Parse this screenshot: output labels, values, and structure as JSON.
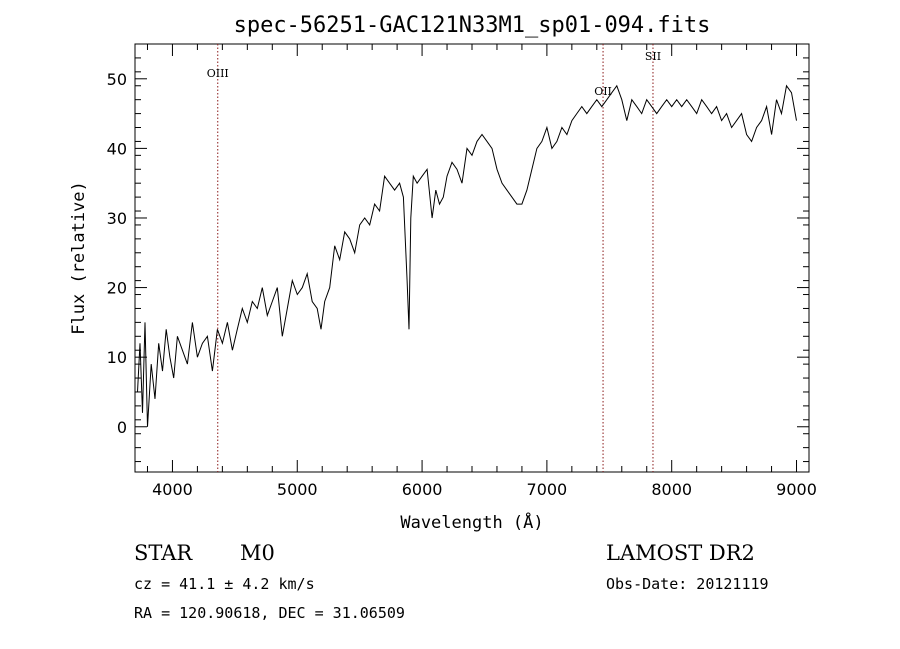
{
  "chart_data": {
    "type": "line",
    "title": "spec-56251-GAC121N33M1_sp01-094.fits",
    "xlabel": "Wavelength (Å)",
    "ylabel": "Flux (relative)",
    "xlim": [
      3700,
      9100
    ],
    "ylim": [
      -6.5,
      55
    ],
    "x_ticks": [
      4000,
      5000,
      6000,
      7000,
      8000,
      9000
    ],
    "y_ticks": [
      0,
      10,
      20,
      30,
      40,
      50
    ],
    "lines": [
      {
        "label": "OIII",
        "x": 4363
      },
      {
        "label": "OII",
        "x": 7450
      },
      {
        "label": "SII",
        "x": 7850
      }
    ],
    "line_color": "#8b1a1a",
    "series": [
      {
        "x": [
          3720,
          3740,
          3760,
          3780,
          3800,
          3830,
          3860,
          3890,
          3920,
          3950,
          3980,
          4010,
          4040,
          4080,
          4120,
          4160,
          4200,
          4240,
          4280,
          4320,
          4360,
          4400,
          4440,
          4480,
          4520,
          4560,
          4600,
          4640,
          4680,
          4720,
          4760,
          4800,
          4840,
          4880,
          4920,
          4960,
          5000,
          5040,
          5080,
          5120,
          5160,
          5190,
          5220,
          5260,
          5300,
          5340,
          5380,
          5420,
          5460,
          5500,
          5540,
          5580,
          5620,
          5660,
          5700,
          5740,
          5780,
          5820,
          5850,
          5880,
          5895,
          5910,
          5930,
          5960,
          6000,
          6040,
          6080,
          6110,
          6140,
          6170,
          6200,
          6240,
          6280,
          6320,
          6360,
          6400,
          6440,
          6480,
          6520,
          6560,
          6600,
          6640,
          6680,
          6720,
          6760,
          6800,
          6840,
          6880,
          6920,
          6960,
          7000,
          7040,
          7080,
          7120,
          7160,
          7200,
          7240,
          7280,
          7320,
          7360,
          7400,
          7440,
          7480,
          7520,
          7560,
          7600,
          7640,
          7680,
          7720,
          7760,
          7800,
          7840,
          7880,
          7920,
          7960,
          8000,
          8040,
          8080,
          8120,
          8160,
          8200,
          8240,
          8280,
          8320,
          8360,
          8400,
          8440,
          8480,
          8520,
          8560,
          8600,
          8640,
          8680,
          8720,
          8760,
          8800,
          8840,
          8880,
          8920,
          8960,
          9000
        ],
        "y": [
          5,
          12,
          2,
          15,
          0,
          9,
          4,
          12,
          8,
          14,
          10,
          7,
          13,
          11,
          9,
          15,
          10,
          12,
          13,
          8,
          14,
          12,
          15,
          11,
          14,
          17,
          15,
          18,
          17,
          20,
          16,
          18,
          20,
          13,
          17,
          21,
          19,
          20,
          22,
          18,
          17,
          14,
          18,
          20,
          26,
          24,
          28,
          27,
          25,
          29,
          30,
          29,
          32,
          31,
          36,
          35,
          34,
          35,
          33,
          21,
          14,
          30,
          36,
          35,
          36,
          37,
          30,
          34,
          32,
          33,
          36,
          38,
          37,
          35,
          40,
          39,
          41,
          42,
          41,
          40,
          37,
          35,
          34,
          33,
          32,
          32,
          34,
          37,
          40,
          41,
          43,
          40,
          41,
          43,
          42,
          44,
          45,
          46,
          45,
          46,
          47,
          46,
          47,
          48,
          49,
          47,
          44,
          47,
          46,
          45,
          47,
          46,
          45,
          46,
          47,
          46,
          47,
          46,
          47,
          46,
          45,
          47,
          46,
          45,
          46,
          44,
          45,
          43,
          44,
          45,
          42,
          41,
          43,
          44,
          46,
          42,
          47,
          45,
          49,
          48,
          44
        ]
      }
    ],
    "grid": false
  },
  "info": {
    "object_type": "STAR",
    "subclass": "M0",
    "survey": "LAMOST DR2",
    "velocity": "cz = 41.1 ± 4.2 km/s",
    "obs_date": "Obs-Date: 20121119",
    "coords": "RA = 120.90618, DEC =  31.06509"
  }
}
